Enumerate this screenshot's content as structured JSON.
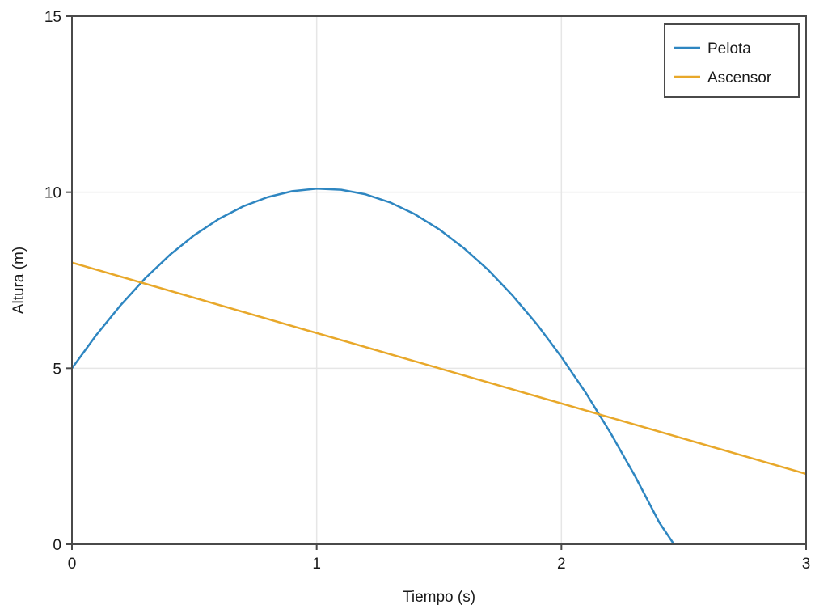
{
  "chart_data": {
    "type": "line",
    "xlabel": "Tiempo (s)",
    "ylabel": "Altura (m)",
    "xlim": [
      0,
      3
    ],
    "ylim": [
      0,
      15
    ],
    "x_ticks": [
      0,
      1,
      2,
      3
    ],
    "y_ticks": [
      0,
      5,
      10,
      15
    ],
    "x_tick_labels": [
      "0",
      "1",
      "2",
      "3"
    ],
    "y_tick_labels": [
      "0",
      "5",
      "10",
      "15"
    ],
    "grid": true,
    "legend_position": "top-right",
    "series": [
      {
        "name": "Pelota",
        "color": "#2e86c1",
        "x": [
          0,
          0.1,
          0.2,
          0.3,
          0.4,
          0.5,
          0.6,
          0.7,
          0.8,
          0.9,
          1.0,
          1.1,
          1.2,
          1.3,
          1.4,
          1.5,
          1.6,
          1.7,
          1.8,
          1.9,
          2.0,
          2.1,
          2.2,
          2.3,
          2.4,
          2.46
        ],
        "y": [
          5.0,
          5.95,
          6.8,
          7.56,
          8.22,
          8.78,
          9.24,
          9.6,
          9.86,
          10.03,
          10.1,
          10.07,
          9.94,
          9.71,
          9.38,
          8.95,
          8.42,
          7.8,
          7.07,
          6.25,
          5.32,
          4.3,
          3.17,
          1.95,
          0.62,
          0.0
        ]
      },
      {
        "name": "Ascensor",
        "color": "#e8a82a",
        "x": [
          0,
          3
        ],
        "y": [
          8,
          2
        ]
      }
    ]
  }
}
